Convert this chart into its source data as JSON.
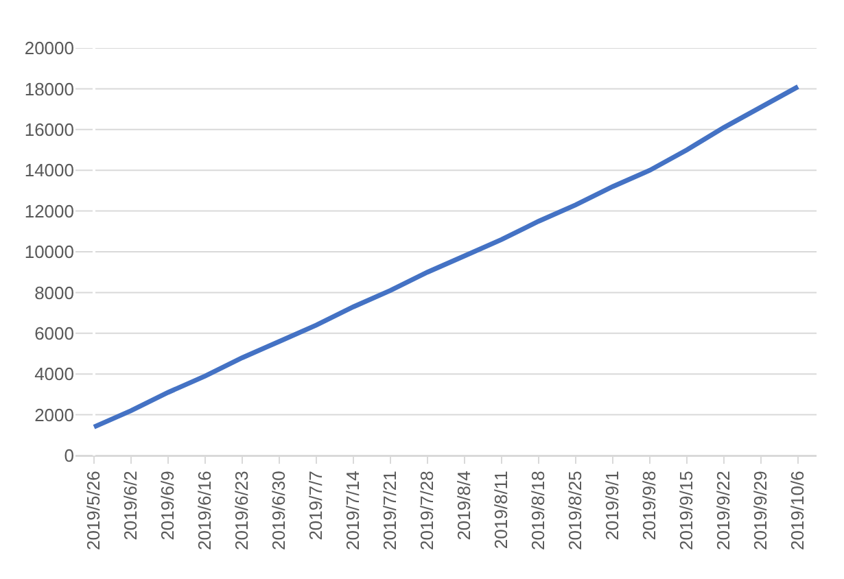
{
  "chart_data": {
    "type": "line",
    "categories": [
      "2019/5/26",
      "2019/6/2",
      "2019/6/9",
      "2019/6/16",
      "2019/6/23",
      "2019/6/30",
      "2019/7/7",
      "2019/7/14",
      "2019/7/21",
      "2019/7/28",
      "2019/8/4",
      "2019/8/11",
      "2019/8/18",
      "2019/8/25",
      "2019/9/1",
      "2019/9/8",
      "2019/9/15",
      "2019/9/22",
      "2019/9/29",
      "2019/10/6"
    ],
    "series": [
      {
        "color": "#4472c4",
        "values": [
          1400,
          2200,
          3100,
          3900,
          4800,
          5600,
          6400,
          7300,
          8100,
          9000,
          9800,
          10600,
          11500,
          12300,
          13200,
          14000,
          15000,
          16100,
          17100,
          18100
        ]
      }
    ],
    "ylim": [
      0,
      20000
    ],
    "yticks": [
      0,
      2000,
      4000,
      6000,
      8000,
      10000,
      12000,
      14000,
      16000,
      18000,
      20000
    ],
    "grid": "y",
    "marker": "none",
    "line_style": "solid"
  }
}
